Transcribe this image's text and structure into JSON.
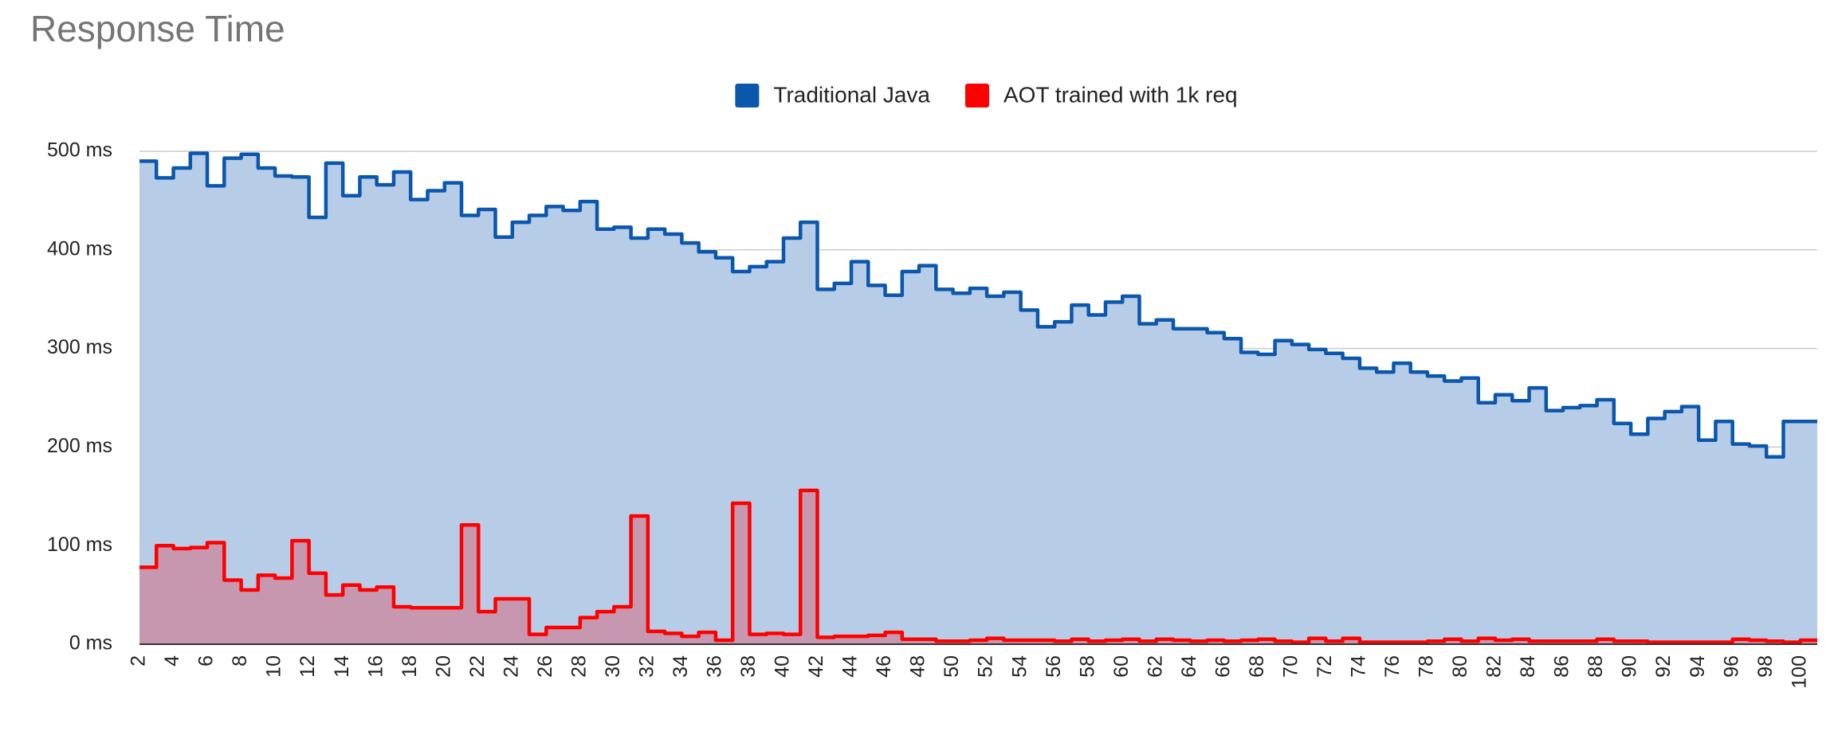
{
  "chart_data": {
    "type": "stepped-area",
    "title": "Response Time",
    "x": [
      2,
      3,
      4,
      5,
      6,
      7,
      8,
      9,
      10,
      11,
      12,
      13,
      14,
      15,
      16,
      17,
      18,
      19,
      20,
      21,
      22,
      23,
      24,
      25,
      26,
      27,
      28,
      29,
      30,
      31,
      32,
      33,
      34,
      35,
      36,
      37,
      38,
      39,
      40,
      41,
      42,
      43,
      44,
      45,
      46,
      47,
      48,
      49,
      50,
      51,
      52,
      53,
      54,
      55,
      56,
      57,
      58,
      59,
      60,
      61,
      62,
      63,
      64,
      65,
      66,
      67,
      68,
      69,
      70,
      71,
      72,
      73,
      74,
      75,
      76,
      77,
      78,
      79,
      80,
      81,
      82,
      83,
      84,
      85,
      86,
      87,
      88,
      89,
      90,
      91,
      92,
      93,
      94,
      95,
      96,
      97,
      98,
      99,
      100
    ],
    "series": [
      {
        "name": "Traditional Java",
        "color": "#0b57ad",
        "fill": "#b7cce6",
        "values": [
          490,
          473,
          483,
          498,
          465,
          493,
          497,
          483,
          475,
          474,
          433,
          488,
          455,
          474,
          466,
          479,
          451,
          460,
          468,
          435,
          441,
          413,
          428,
          435,
          444,
          440,
          449,
          421,
          423,
          412,
          421,
          416,
          407,
          398,
          392,
          378,
          383,
          388,
          412,
          428,
          360,
          366,
          388,
          364,
          354,
          378,
          384,
          360,
          356,
          361,
          353,
          357,
          339,
          322,
          327,
          344,
          334,
          347,
          353,
          325,
          329,
          320,
          320,
          316,
          310,
          296,
          294,
          308,
          304,
          299,
          295,
          290,
          280,
          276,
          285,
          276,
          272,
          267,
          270,
          245,
          253,
          247,
          260,
          237,
          240,
          242,
          248,
          224,
          213,
          229,
          236,
          241,
          207,
          226,
          203,
          201,
          190,
          226,
          226
        ]
      },
      {
        "name": "AOT trained with 1k req",
        "color": "#ff0000",
        "fill": "rgba(230,40,60,0.32)",
        "values": [
          78,
          100,
          97,
          98,
          103,
          65,
          55,
          70,
          67,
          105,
          72,
          50,
          60,
          55,
          58,
          38,
          37,
          37,
          37,
          121,
          33,
          46,
          46,
          10,
          17,
          17,
          27,
          33,
          38,
          130,
          13,
          11,
          8,
          12,
          4,
          143,
          10,
          11,
          10,
          156,
          7,
          8,
          8,
          9,
          12,
          5,
          5,
          3,
          3,
          4,
          6,
          4,
          4,
          4,
          3,
          5,
          3,
          4,
          5,
          3,
          5,
          4,
          3,
          4,
          3,
          4,
          5,
          3,
          2,
          6,
          3,
          6,
          2,
          2,
          2,
          2,
          3,
          5,
          3,
          6,
          4,
          5,
          3,
          3,
          3,
          3,
          5,
          3,
          3,
          2,
          2,
          2,
          2,
          2,
          5,
          4,
          3,
          2,
          4
        ]
      }
    ],
    "xlim": [
      2,
      101
    ],
    "xticks": [
      2,
      4,
      6,
      8,
      10,
      12,
      14,
      16,
      18,
      20,
      22,
      24,
      26,
      28,
      30,
      32,
      34,
      36,
      38,
      40,
      42,
      44,
      46,
      48,
      50,
      52,
      54,
      56,
      58,
      60,
      62,
      64,
      66,
      68,
      70,
      72,
      74,
      76,
      78,
      80,
      82,
      84,
      86,
      88,
      90,
      92,
      94,
      96,
      98,
      100
    ],
    "ylim": [
      0,
      500
    ],
    "yticks": [
      {
        "value": 0,
        "label": "0 ms"
      },
      {
        "value": 100,
        "label": "100 ms"
      },
      {
        "value": 200,
        "label": "200 ms"
      },
      {
        "value": 300,
        "label": "300 ms"
      },
      {
        "value": 400,
        "label": "400 ms"
      },
      {
        "value": 500,
        "label": "500 ms"
      }
    ],
    "grid": true,
    "legend": "top"
  }
}
